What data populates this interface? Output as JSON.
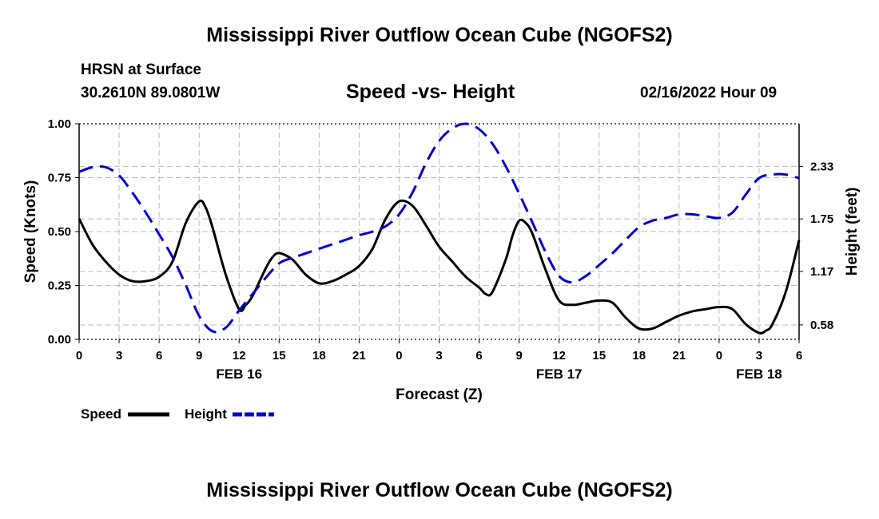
{
  "header": {
    "title": "Mississippi River Outflow Ocean Cube (NGOFS2)",
    "station": "HRSN at Surface",
    "coords": "30.2610N  89.0801W",
    "subtitle": "Speed -vs- Height",
    "datetime": "02/16/2022 Hour 09"
  },
  "footer": {
    "title": "Mississippi River Outflow Ocean Cube (NGOFS2)"
  },
  "colors": {
    "speed": "#000000",
    "height": "#0000cc",
    "grid": "#b8b8b8"
  },
  "chart_data": {
    "type": "line",
    "xlabel": "Forecast (Z)",
    "ylabel": "Speed (Knots)",
    "y2label": "Height (feet)",
    "xlim": [
      0,
      54
    ],
    "ylim": [
      0,
      1.0
    ],
    "y2lim": [
      0.421,
      2.8
    ],
    "xticks": [
      0,
      3,
      6,
      9,
      12,
      15,
      18,
      21,
      24,
      27,
      30,
      33,
      36,
      39,
      42,
      45,
      48,
      51,
      54
    ],
    "xtick_labels": [
      "0",
      "3",
      "6",
      "9",
      "12",
      "15",
      "18",
      "21",
      "0",
      "3",
      "6",
      "9",
      "12",
      "15",
      "18",
      "21",
      "0",
      "3",
      "6"
    ],
    "yticks": [
      0.0,
      0.25,
      0.5,
      0.75,
      1.0
    ],
    "ytick_labels": [
      "0.00",
      "0.25",
      "0.50",
      "0.75",
      "1.00"
    ],
    "y2ticks": [
      0.58,
      1.17,
      1.75,
      2.33
    ],
    "y2tick_labels": [
      "0.58",
      "1.17",
      "1.75",
      "2.33"
    ],
    "day_labels": [
      {
        "x": 12,
        "label": "FEB 16"
      },
      {
        "x": 36,
        "label": "FEB 17"
      },
      {
        "x": 51,
        "label": "FEB 18"
      }
    ],
    "legend": [
      "Speed",
      "Height"
    ],
    "series": [
      {
        "name": "Speed",
        "axis": "left",
        "x": [
          0,
          1,
          2,
          3,
          4,
          5,
          6,
          7,
          8,
          9,
          9.5,
          10,
          11,
          12,
          12.5,
          13,
          14,
          14.5,
          15,
          16,
          17,
          18,
          19,
          20,
          21,
          22,
          23,
          24,
          25,
          26,
          27,
          28,
          29,
          30,
          30.5,
          31,
          32,
          32.5,
          33,
          33.5,
          34,
          35,
          36,
          37,
          38,
          39,
          40,
          41,
          42,
          43,
          44,
          45,
          46,
          47,
          48,
          49,
          50,
          51,
          51.5,
          52,
          53,
          54
        ],
        "values": [
          0.56,
          0.44,
          0.36,
          0.3,
          0.27,
          0.27,
          0.29,
          0.36,
          0.54,
          0.64,
          0.61,
          0.52,
          0.3,
          0.14,
          0.16,
          0.2,
          0.33,
          0.38,
          0.4,
          0.37,
          0.3,
          0.26,
          0.27,
          0.3,
          0.34,
          0.42,
          0.56,
          0.64,
          0.62,
          0.53,
          0.43,
          0.36,
          0.29,
          0.24,
          0.21,
          0.22,
          0.37,
          0.48,
          0.55,
          0.54,
          0.49,
          0.32,
          0.18,
          0.16,
          0.17,
          0.18,
          0.17,
          0.1,
          0.05,
          0.05,
          0.08,
          0.11,
          0.13,
          0.14,
          0.15,
          0.14,
          0.07,
          0.03,
          0.04,
          0.07,
          0.22,
          0.46
        ]
      },
      {
        "name": "Height",
        "axis": "right",
        "x": [
          0,
          1,
          2,
          3,
          4,
          5,
          6,
          7,
          8,
          9,
          10,
          11,
          12,
          13,
          14,
          15,
          16,
          17,
          18,
          19,
          20,
          21,
          22,
          23,
          24,
          25,
          26,
          27,
          28,
          29,
          30,
          31,
          32,
          33,
          34,
          35,
          36,
          37,
          38,
          39,
          40,
          41,
          42,
          43,
          44,
          45,
          46,
          47,
          48,
          49,
          50,
          51,
          52,
          53,
          54
        ],
        "values": [
          2.27,
          2.32,
          2.32,
          2.23,
          2.04,
          1.82,
          1.58,
          1.33,
          1.02,
          0.68,
          0.51,
          0.55,
          0.74,
          0.92,
          1.1,
          1.26,
          1.32,
          1.37,
          1.42,
          1.47,
          1.52,
          1.57,
          1.61,
          1.67,
          1.8,
          2.04,
          2.36,
          2.61,
          2.75,
          2.8,
          2.74,
          2.58,
          2.33,
          2.03,
          1.71,
          1.38,
          1.12,
          1.05,
          1.12,
          1.24,
          1.37,
          1.52,
          1.66,
          1.73,
          1.76,
          1.8,
          1.8,
          1.78,
          1.76,
          1.82,
          2.02,
          2.2,
          2.24,
          2.24,
          2.2
        ]
      }
    ]
  }
}
